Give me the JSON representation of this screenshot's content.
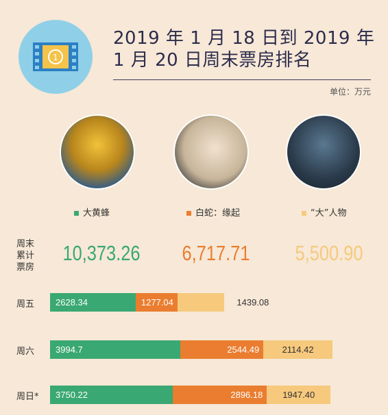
{
  "chart_data": {
    "type": "bar",
    "orientation": "horizontal",
    "stacked": true,
    "title": "2019 年 1 月 18 日到 2019 年 1 月 20 日周末票房排名",
    "unit_label": "单位：万元",
    "categories": [
      "周五",
      "周六",
      "周日*"
    ],
    "series": [
      {
        "name": "大黄蜂",
        "color": "#3aa872",
        "values": [
          2628.34,
          3994.7,
          3750.22
        ]
      },
      {
        "name": "白蛇：缘起",
        "color": "#ea7d2f",
        "values": [
          1277.04,
          2544.49,
          2896.18
        ]
      },
      {
        "name": "“大”人物",
        "color": "#f6c97d",
        "values": [
          1439.08,
          2114.42,
          1947.4
        ],
        "value_labels": [
          "1439.08",
          "2114.42",
          "1947.40"
        ]
      }
    ],
    "totals": {
      "label": "周末累计票房",
      "values": [
        10373.26,
        6717.71,
        5500.9
      ],
      "value_labels": [
        "10,373.26",
        "6,717.71",
        "5,500.90"
      ]
    }
  }
}
